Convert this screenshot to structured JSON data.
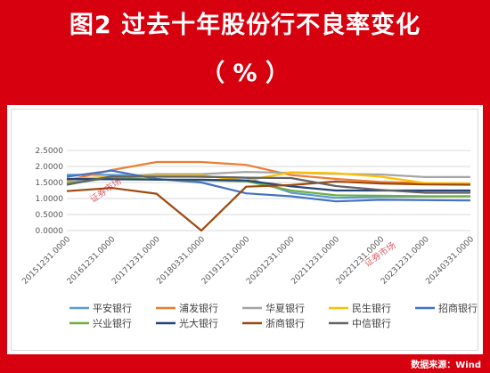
{
  "title_line1": "图2  过去十年股份行不良率变化",
  "title_line2": "（ % ）",
  "source": "数据来源：Wind",
  "watermark": "证券市场",
  "chart_data": {
    "type": "line",
    "x": [
      "20151231.0000",
      "20161231.0000",
      "20171231.0000",
      "20180331.0000",
      "20191231.0000",
      "20201231.0000",
      "20211231.0000",
      "20221231.0000",
      "20231231.0000",
      "20240331.0000"
    ],
    "yticks": [
      "0.0000",
      "0.5000",
      "1.0000",
      "1.5000",
      "2.0000",
      "2.5000"
    ],
    "ylim": [
      0,
      2.5
    ],
    "grid": true,
    "legend_position": "bottom",
    "series": [
      {
        "name": "平安银行",
        "color": "#5b9bd5",
        "values": [
          1.74,
          1.74,
          1.7,
          1.68,
          1.65,
          1.18,
          1.02,
          1.05,
          1.06,
          1.07
        ]
      },
      {
        "name": "浦发银行",
        "color": "#ed7d31",
        "values": [
          1.56,
          1.89,
          2.14,
          2.14,
          2.05,
          1.73,
          1.61,
          1.52,
          1.48,
          1.45
        ]
      },
      {
        "name": "华夏银行",
        "color": "#a5a5a5",
        "values": [
          1.52,
          1.67,
          1.76,
          1.76,
          1.83,
          1.8,
          1.77,
          1.75,
          1.67,
          1.67
        ]
      },
      {
        "name": "民生银行",
        "color": "#ffc000",
        "values": [
          1.6,
          1.68,
          1.71,
          1.72,
          1.56,
          1.82,
          1.79,
          1.68,
          1.48,
          1.47
        ]
      },
      {
        "name": "招商银行",
        "color": "#4472c4",
        "values": [
          1.68,
          1.87,
          1.61,
          1.5,
          1.16,
          1.07,
          0.91,
          0.96,
          0.95,
          0.94
        ]
      },
      {
        "name": "兴业银行",
        "color": "#70ad47",
        "values": [
          1.46,
          1.65,
          1.59,
          1.57,
          1.54,
          1.25,
          1.1,
          1.09,
          1.07,
          1.07
        ]
      },
      {
        "name": "光大银行",
        "color": "#264478",
        "values": [
          1.61,
          1.6,
          1.59,
          1.59,
          1.56,
          1.38,
          1.25,
          1.25,
          1.25,
          1.25
        ]
      },
      {
        "name": "浙商银行",
        "color": "#9e480e",
        "values": [
          1.23,
          1.33,
          1.15,
          0.0,
          1.37,
          1.42,
          1.53,
          1.47,
          1.44,
          1.43
        ]
      },
      {
        "name": "中信银行",
        "color": "#636363",
        "values": [
          1.43,
          1.69,
          1.68,
          1.68,
          1.65,
          1.64,
          1.39,
          1.27,
          1.18,
          1.18
        ]
      }
    ]
  }
}
